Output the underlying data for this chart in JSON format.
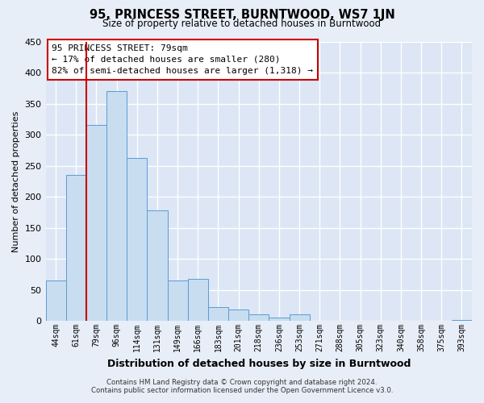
{
  "title": "95, PRINCESS STREET, BURNTWOOD, WS7 1JN",
  "subtitle": "Size of property relative to detached houses in Burntwood",
  "xlabel": "Distribution of detached houses by size in Burntwood",
  "ylabel": "Number of detached properties",
  "bar_labels": [
    "44sqm",
    "61sqm",
    "79sqm",
    "96sqm",
    "114sqm",
    "131sqm",
    "149sqm",
    "166sqm",
    "183sqm",
    "201sqm",
    "218sqm",
    "236sqm",
    "253sqm",
    "271sqm",
    "288sqm",
    "305sqm",
    "323sqm",
    "340sqm",
    "358sqm",
    "375sqm",
    "393sqm"
  ],
  "bar_values": [
    65,
    235,
    315,
    370,
    263,
    178,
    65,
    68,
    22,
    19,
    10,
    5,
    11,
    0,
    0,
    0,
    0,
    0,
    0,
    0,
    2
  ],
  "bar_color": "#c8ddf0",
  "bar_edge_color": "#5b9bd5",
  "highlight_bar_index": 2,
  "highlight_color": "#cc0000",
  "annotation_title": "95 PRINCESS STREET: 79sqm",
  "annotation_line1": "← 17% of detached houses are smaller (280)",
  "annotation_line2": "82% of semi-detached houses are larger (1,318) →",
  "annotation_box_color": "#ffffff",
  "annotation_box_edge": "#cc0000",
  "ylim": [
    0,
    450
  ],
  "yticks": [
    0,
    50,
    100,
    150,
    200,
    250,
    300,
    350,
    400,
    450
  ],
  "footer_line1": "Contains HM Land Registry data © Crown copyright and database right 2024.",
  "footer_line2": "Contains public sector information licensed under the Open Government Licence v3.0.",
  "bg_color": "#e8eef8",
  "plot_bg_color": "#dce6f5",
  "grid_color": "#ffffff"
}
